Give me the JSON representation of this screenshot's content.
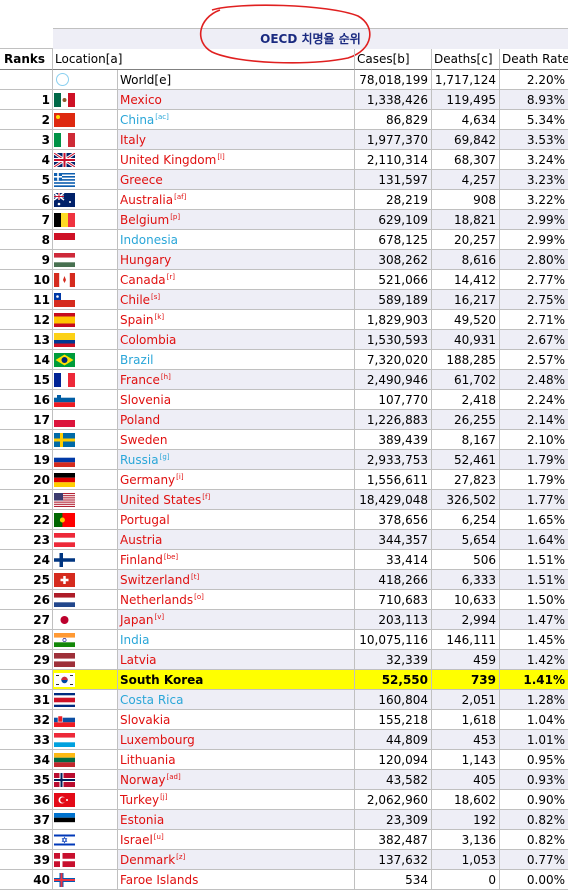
{
  "title": "OECD 치명율 순위",
  "headers": {
    "rank": "Ranks",
    "location": "Location[a]",
    "cases": "Cases[b]",
    "deaths": "Deaths[c]",
    "rate": "Death Rate"
  },
  "world": {
    "name": "World[e]",
    "cases": "78,018,199",
    "deaths": "1,717,124",
    "rate": "2.20%"
  },
  "rows": [
    {
      "rank": "1",
      "name": "Mexico",
      "note": "",
      "cases": "1,338,426",
      "deaths": "119,495",
      "rate": "8.93%",
      "color": "red",
      "flag": "mexico-flag"
    },
    {
      "rank": "2",
      "name": "China",
      "note": "[ac]",
      "cases": "86,829",
      "deaths": "4,634",
      "rate": "5.34%",
      "color": "blue",
      "flag": "china-flag"
    },
    {
      "rank": "3",
      "name": "Italy",
      "note": "",
      "cases": "1,977,370",
      "deaths": "69,842",
      "rate": "3.53%",
      "color": "red",
      "flag": "italy-flag"
    },
    {
      "rank": "4",
      "name": "United Kingdom",
      "note": "[l]",
      "cases": "2,110,314",
      "deaths": "68,307",
      "rate": "3.24%",
      "color": "red",
      "flag": "united-kingdom-flag"
    },
    {
      "rank": "5",
      "name": "Greece",
      "note": "",
      "cases": "131,597",
      "deaths": "4,257",
      "rate": "3.23%",
      "color": "red",
      "flag": "greece-flag"
    },
    {
      "rank": "6",
      "name": "Australia",
      "note": "[af]",
      "cases": "28,219",
      "deaths": "908",
      "rate": "3.22%",
      "color": "red",
      "flag": "australia-flag"
    },
    {
      "rank": "7",
      "name": "Belgium",
      "note": "[p]",
      "cases": "629,109",
      "deaths": "18,821",
      "rate": "2.99%",
      "color": "red",
      "flag": "belgium-flag"
    },
    {
      "rank": "8",
      "name": "Indonesia",
      "note": "",
      "cases": "678,125",
      "deaths": "20,257",
      "rate": "2.99%",
      "color": "blue",
      "flag": "indonesia-flag"
    },
    {
      "rank": "9",
      "name": "Hungary",
      "note": "",
      "cases": "308,262",
      "deaths": "8,616",
      "rate": "2.80%",
      "color": "red",
      "flag": "hungary-flag"
    },
    {
      "rank": "10",
      "name": "Canada",
      "note": "[r]",
      "cases": "521,066",
      "deaths": "14,412",
      "rate": "2.77%",
      "color": "red",
      "flag": "canada-flag"
    },
    {
      "rank": "11",
      "name": "Chile",
      "note": "[s]",
      "cases": "589,189",
      "deaths": "16,217",
      "rate": "2.75%",
      "color": "red",
      "flag": "chile-flag"
    },
    {
      "rank": "12",
      "name": "Spain",
      "note": "[k]",
      "cases": "1,829,903",
      "deaths": "49,520",
      "rate": "2.71%",
      "color": "red",
      "flag": "spain-flag"
    },
    {
      "rank": "13",
      "name": "Colombia",
      "note": "",
      "cases": "1,530,593",
      "deaths": "40,931",
      "rate": "2.67%",
      "color": "red",
      "flag": "colombia-flag"
    },
    {
      "rank": "14",
      "name": "Brazil",
      "note": "",
      "cases": "7,320,020",
      "deaths": "188,285",
      "rate": "2.57%",
      "color": "blue",
      "flag": "brazil-flag"
    },
    {
      "rank": "15",
      "name": "France",
      "note": "[h]",
      "cases": "2,490,946",
      "deaths": "61,702",
      "rate": "2.48%",
      "color": "red",
      "flag": "france-flag"
    },
    {
      "rank": "16",
      "name": "Slovenia",
      "note": "",
      "cases": "107,770",
      "deaths": "2,418",
      "rate": "2.24%",
      "color": "red",
      "flag": "slovenia-flag"
    },
    {
      "rank": "17",
      "name": "Poland",
      "note": "",
      "cases": "1,226,883",
      "deaths": "26,255",
      "rate": "2.14%",
      "color": "red",
      "flag": "poland-flag"
    },
    {
      "rank": "18",
      "name": "Sweden",
      "note": "",
      "cases": "389,439",
      "deaths": "8,167",
      "rate": "2.10%",
      "color": "red",
      "flag": "sweden-flag"
    },
    {
      "rank": "19",
      "name": "Russia",
      "note": "[g]",
      "cases": "2,933,753",
      "deaths": "52,461",
      "rate": "1.79%",
      "color": "blue",
      "flag": "russia-flag"
    },
    {
      "rank": "20",
      "name": "Germany",
      "note": "[i]",
      "cases": "1,556,611",
      "deaths": "27,823",
      "rate": "1.79%",
      "color": "red",
      "flag": "germany-flag"
    },
    {
      "rank": "21",
      "name": "United States",
      "note": "[f]",
      "cases": "18,429,048",
      "deaths": "326,502",
      "rate": "1.77%",
      "color": "red",
      "flag": "united-states-flag"
    },
    {
      "rank": "22",
      "name": "Portugal",
      "note": "",
      "cases": "378,656",
      "deaths": "6,254",
      "rate": "1.65%",
      "color": "red",
      "flag": "portugal-flag"
    },
    {
      "rank": "23",
      "name": "Austria",
      "note": "",
      "cases": "344,357",
      "deaths": "5,654",
      "rate": "1.64%",
      "color": "red",
      "flag": "austria-flag"
    },
    {
      "rank": "24",
      "name": "Finland",
      "note": "[be]",
      "cases": "33,414",
      "deaths": "506",
      "rate": "1.51%",
      "color": "red",
      "flag": "finland-flag"
    },
    {
      "rank": "25",
      "name": "Switzerland",
      "note": "[t]",
      "cases": "418,266",
      "deaths": "6,333",
      "rate": "1.51%",
      "color": "red",
      "flag": "switzerland-flag"
    },
    {
      "rank": "26",
      "name": "Netherlands",
      "note": "[o]",
      "cases": "710,683",
      "deaths": "10,633",
      "rate": "1.50%",
      "color": "red",
      "flag": "netherlands-flag"
    },
    {
      "rank": "27",
      "name": "Japan",
      "note": "[v]",
      "cases": "203,113",
      "deaths": "2,994",
      "rate": "1.47%",
      "color": "red",
      "flag": "japan-flag"
    },
    {
      "rank": "28",
      "name": "India",
      "note": "",
      "cases": "10,075,116",
      "deaths": "146,111",
      "rate": "1.45%",
      "color": "blue",
      "flag": "india-flag"
    },
    {
      "rank": "29",
      "name": "Latvia",
      "note": "",
      "cases": "32,339",
      "deaths": "459",
      "rate": "1.42%",
      "color": "red",
      "flag": "latvia-flag"
    },
    {
      "rank": "30",
      "name": "South Korea",
      "note": "",
      "cases": "52,550",
      "deaths": "739",
      "rate": "1.41%",
      "color": "black",
      "flag": "south-korea-flag",
      "highlight": true
    },
    {
      "rank": "31",
      "name": "Costa Rica",
      "note": "",
      "cases": "160,804",
      "deaths": "2,051",
      "rate": "1.28%",
      "color": "blue",
      "flag": "costa-rica-flag"
    },
    {
      "rank": "32",
      "name": "Slovakia",
      "note": "",
      "cases": "155,218",
      "deaths": "1,618",
      "rate": "1.04%",
      "color": "red",
      "flag": "slovakia-flag"
    },
    {
      "rank": "33",
      "name": "Luxembourg",
      "note": "",
      "cases": "44,809",
      "deaths": "453",
      "rate": "1.01%",
      "color": "red",
      "flag": "luxembourg-flag"
    },
    {
      "rank": "34",
      "name": "Lithuania",
      "note": "",
      "cases": "120,094",
      "deaths": "1,143",
      "rate": "0.95%",
      "color": "red",
      "flag": "lithuania-flag"
    },
    {
      "rank": "35",
      "name": "Norway",
      "note": "[ad]",
      "cases": "43,582",
      "deaths": "405",
      "rate": "0.93%",
      "color": "red",
      "flag": "norway-flag"
    },
    {
      "rank": "36",
      "name": "Turkey",
      "note": "[j]",
      "cases": "2,062,960",
      "deaths": "18,602",
      "rate": "0.90%",
      "color": "red",
      "flag": "turkey-flag"
    },
    {
      "rank": "37",
      "name": "Estonia",
      "note": "",
      "cases": "23,309",
      "deaths": "192",
      "rate": "0.82%",
      "color": "red",
      "flag": "estonia-flag"
    },
    {
      "rank": "38",
      "name": "Israel",
      "note": "[u]",
      "cases": "382,487",
      "deaths": "3,136",
      "rate": "0.82%",
      "color": "red",
      "flag": "israel-flag"
    },
    {
      "rank": "39",
      "name": "Denmark",
      "note": "[z]",
      "cases": "137,632",
      "deaths": "1,053",
      "rate": "0.77%",
      "color": "red",
      "flag": "denmark-flag"
    },
    {
      "rank": "40",
      "name": "Faroe Islands",
      "note": "",
      "cases": "534",
      "deaths": "0",
      "rate": "0.00%",
      "color": "red",
      "flag": "faroe-islands-flag"
    }
  ]
}
